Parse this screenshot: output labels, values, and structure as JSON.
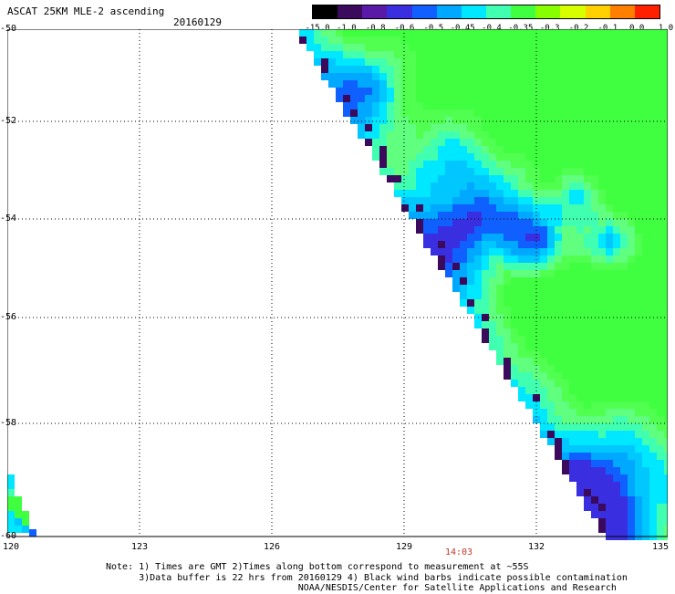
{
  "header": {
    "title": "ASCAT 25KM MLE-2 ascending",
    "date": "20160129"
  },
  "colorbar": {
    "labels": [
      "-15.0",
      "-1.0",
      "-0.8",
      "-0.6",
      "-0.5",
      "-0.45",
      "-0.4",
      "-0.35",
      "-0.3",
      "-0.2",
      "-0.1",
      "0.0",
      "1.0"
    ],
    "colors": [
      "#000000",
      "#3b0a5c",
      "#5a1aa8",
      "#3a2fe0",
      "#1060ff",
      "#00a8ff",
      "#00e8ff",
      "#40ffb0",
      "#40ff40",
      "#88ff00",
      "#d8ff00",
      "#ffd000",
      "#ff8000",
      "#ff2000"
    ]
  },
  "map": {
    "lat_labels": [
      "-50",
      "-52",
      "-54",
      "-56",
      "-58",
      "-60"
    ],
    "lon_labels": [
      "120",
      "123",
      "126",
      "129",
      "132",
      "135"
    ],
    "time_label": "14:03"
  },
  "notes": {
    "line1": "Note: 1) Times are GMT 2)Times along bottom correspond to measurement at ~55S",
    "line2": "      3)Data buffer is 22 hrs from 20160129 4) Black wind barbs indicate possible contamination",
    "line3": "                                   NOAA/NESDIS/Center for Satellite Applications and Research"
  }
}
